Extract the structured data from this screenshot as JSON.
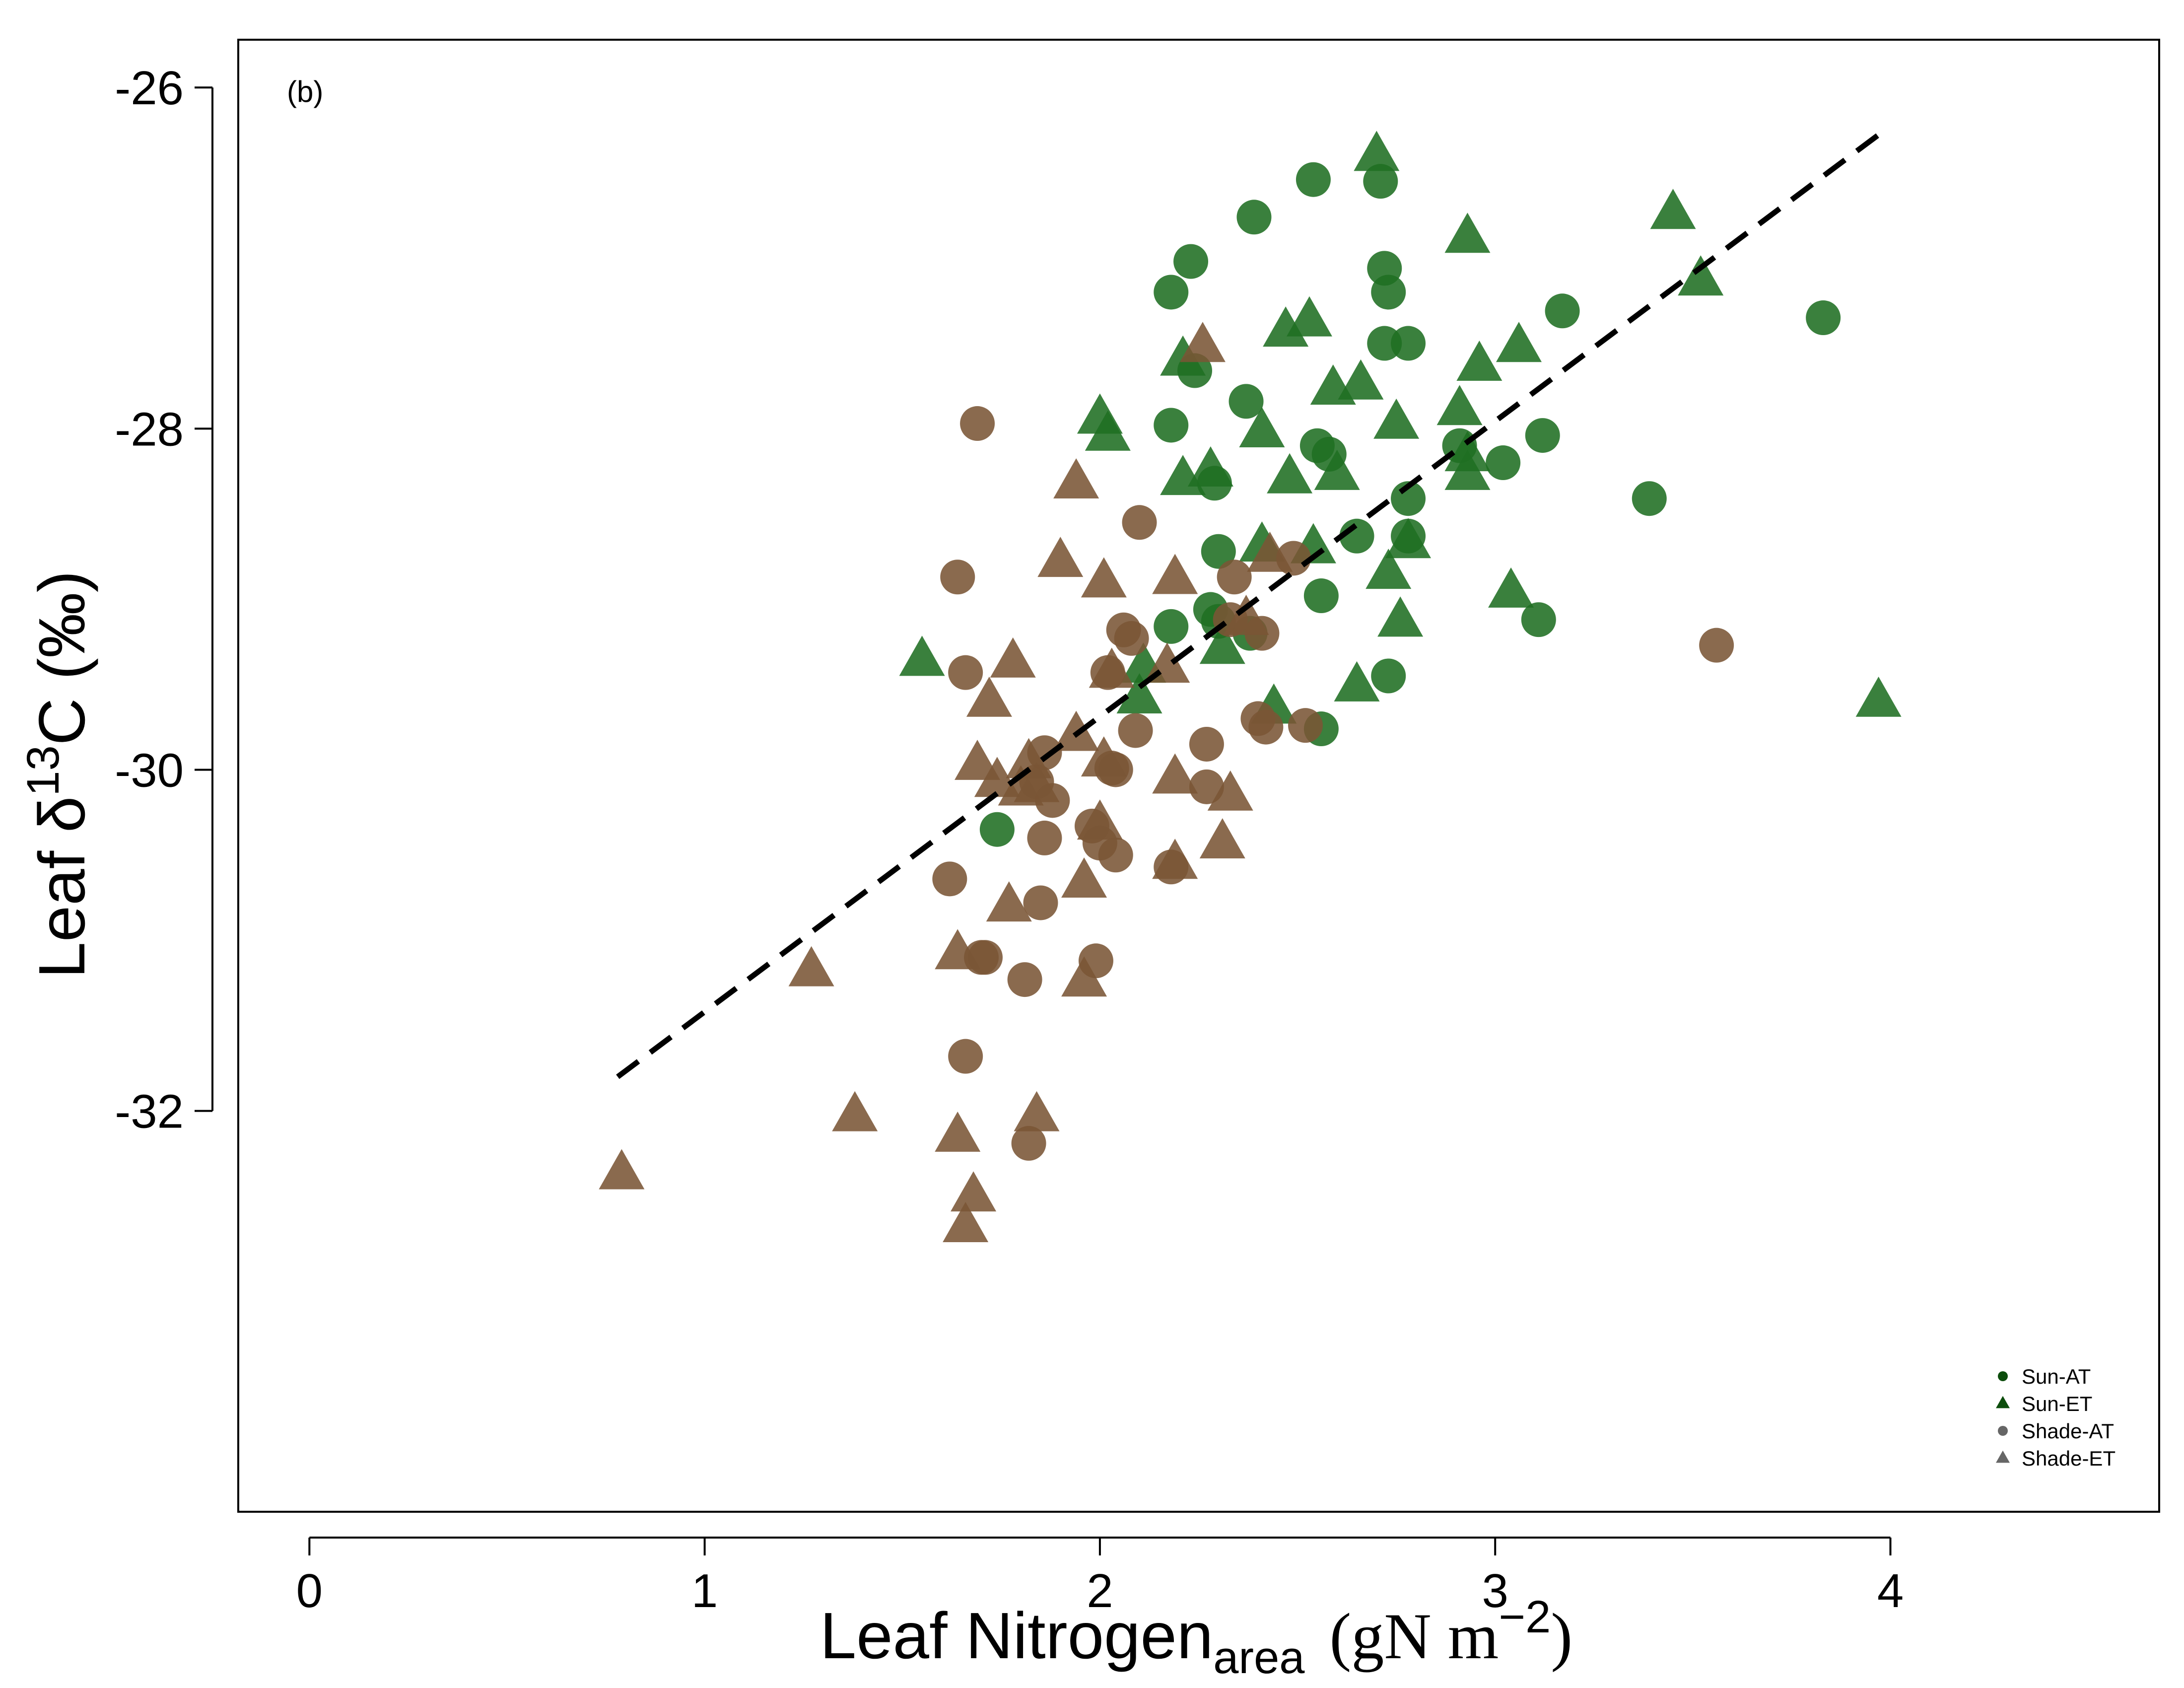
{
  "chart_data": {
    "type": "scatter",
    "panel_label": "(b)",
    "x_label": {
      "prefix": "Leaf Nitrogen",
      "subscript": "area",
      "unit_open": "(gN m",
      "unit_sup": "−2",
      "unit_close": ")"
    },
    "y_label": {
      "prefix": "Leaf δ",
      "superscript": "13",
      "suffix": "C  (‰)"
    },
    "xlim": [
      -0.18,
      4.68
    ],
    "ylim": [
      -34.35,
      -25.72
    ],
    "x_ticks": [
      0,
      1,
      2,
      3,
      4
    ],
    "x_tick_labels": [
      "0",
      "1",
      "2",
      "3",
      "4"
    ],
    "y_ticks": [
      -32,
      -30,
      -28,
      -26
    ],
    "y_tick_labels": [
      "-32",
      "-30",
      "-28",
      "-26"
    ],
    "grid": false,
    "legend_position": "bottom-right",
    "colors": {
      "sun": "#1f6e22",
      "shade": "#7a5535",
      "legend_sun": "#0c4d0c",
      "legend_shade": "#666666",
      "fit": "#000000"
    },
    "legend": [
      {
        "label": "Sun-AT",
        "marker": "circle",
        "group": "sun"
      },
      {
        "label": "Sun-ET",
        "marker": "triangle",
        "group": "sun"
      },
      {
        "label": "Shade-AT",
        "marker": "circle",
        "group": "shade"
      },
      {
        "label": "Shade-ET",
        "marker": "triangle",
        "group": "shade"
      }
    ],
    "fit_line": {
      "style": "dashed",
      "x": [
        0.78,
        3.98
      ],
      "y": [
        -31.8,
        -26.26
      ]
    },
    "series": [
      {
        "name": "Sun-AT",
        "marker": "circle",
        "group": "sun",
        "points": [
          [
            2.54,
            -26.54
          ],
          [
            2.71,
            -26.55
          ],
          [
            2.39,
            -26.76
          ],
          [
            2.23,
            -27.02
          ],
          [
            2.18,
            -27.2
          ],
          [
            2.72,
            -27.06
          ],
          [
            2.73,
            -27.2
          ],
          [
            3.17,
            -27.31
          ],
          [
            3.83,
            -27.35
          ],
          [
            2.24,
            -27.66
          ],
          [
            2.72,
            -27.5
          ],
          [
            2.78,
            -27.5
          ],
          [
            2.37,
            -27.84
          ],
          [
            2.18,
            -27.98
          ],
          [
            2.55,
            -28.1
          ],
          [
            2.58,
            -28.15
          ],
          [
            2.29,
            -28.32
          ],
          [
            3.12,
            -28.04
          ],
          [
            2.91,
            -28.1
          ],
          [
            3.02,
            -28.2
          ],
          [
            3.39,
            -28.41
          ],
          [
            2.78,
            -28.41
          ],
          [
            2.3,
            -28.72
          ],
          [
            2.65,
            -28.63
          ],
          [
            2.78,
            -28.63
          ],
          [
            2.56,
            -28.98
          ],
          [
            2.28,
            -29.06
          ],
          [
            2.3,
            -29.13
          ],
          [
            2.18,
            -29.16
          ],
          [
            3.11,
            -29.12
          ],
          [
            2.38,
            -29.2
          ],
          [
            2.73,
            -29.45
          ],
          [
            1.74,
            -30.35
          ],
          [
            2.56,
            -29.76
          ]
        ]
      },
      {
        "name": "Sun-ET",
        "marker": "triangle",
        "group": "sun",
        "points": [
          [
            2.7,
            -26.4
          ],
          [
            3.45,
            -26.74
          ],
          [
            2.93,
            -26.88
          ],
          [
            3.52,
            -27.13
          ],
          [
            2.53,
            -27.37
          ],
          [
            2.47,
            -27.43
          ],
          [
            3.06,
            -27.52
          ],
          [
            2.21,
            -27.6
          ],
          [
            2.96,
            -27.63
          ],
          [
            2.66,
            -27.74
          ],
          [
            2.59,
            -27.77
          ],
          [
            2.0,
            -27.94
          ],
          [
            2.91,
            -27.89
          ],
          [
            2.41,
            -28.02
          ],
          [
            2.75,
            -27.97
          ],
          [
            2.02,
            -28.04
          ],
          [
            2.28,
            -28.25
          ],
          [
            2.21,
            -28.3
          ],
          [
            2.48,
            -28.29
          ],
          [
            2.6,
            -28.27
          ],
          [
            2.93,
            -28.27
          ],
          [
            2.93,
            -28.16
          ],
          [
            2.41,
            -28.69
          ],
          [
            2.78,
            -28.67
          ],
          [
            2.54,
            -28.7
          ],
          [
            2.73,
            -28.85
          ],
          [
            3.04,
            -28.96
          ],
          [
            2.76,
            -29.13
          ],
          [
            2.31,
            -29.29
          ],
          [
            1.55,
            -29.36
          ],
          [
            2.11,
            -29.4
          ],
          [
            2.65,
            -29.51
          ],
          [
            2.1,
            -29.58
          ],
          [
            3.97,
            -29.6
          ],
          [
            2.44,
            -29.64
          ]
        ]
      },
      {
        "name": "Shade-AT",
        "marker": "circle",
        "group": "shade",
        "points": [
          [
            1.69,
            -27.97
          ],
          [
            2.1,
            -28.55
          ],
          [
            1.64,
            -28.87
          ],
          [
            2.34,
            -28.87
          ],
          [
            2.49,
            -28.76
          ],
          [
            2.06,
            -29.18
          ],
          [
            2.08,
            -29.23
          ],
          [
            2.41,
            -29.2
          ],
          [
            2.33,
            -29.12
          ],
          [
            3.56,
            -29.27
          ],
          [
            1.66,
            -29.43
          ],
          [
            2.02,
            -29.43
          ],
          [
            2.4,
            -29.7
          ],
          [
            2.42,
            -29.75
          ],
          [
            2.52,
            -29.74
          ],
          [
            2.09,
            -29.77
          ],
          [
            1.86,
            -29.9
          ],
          [
            2.27,
            -29.85
          ],
          [
            2.03,
            -29.99
          ],
          [
            2.04,
            -30.0
          ],
          [
            1.84,
            -30.07
          ],
          [
            2.27,
            -30.1
          ],
          [
            1.88,
            -30.18
          ],
          [
            1.98,
            -30.33
          ],
          [
            2.0,
            -30.43
          ],
          [
            1.86,
            -30.4
          ],
          [
            2.04,
            -30.5
          ],
          [
            2.18,
            -30.57
          ],
          [
            1.62,
            -30.64
          ],
          [
            1.85,
            -30.78
          ],
          [
            1.71,
            -31.1
          ],
          [
            1.7,
            -31.1
          ],
          [
            1.99,
            -31.12
          ],
          [
            1.81,
            -31.23
          ],
          [
            1.66,
            -31.68
          ],
          [
            1.82,
            -32.19
          ]
        ]
      },
      {
        "name": "Shade-ET",
        "marker": "triangle",
        "group": "shade",
        "points": [
          [
            2.26,
            -27.52
          ],
          [
            1.94,
            -28.32
          ],
          [
            1.9,
            -28.78
          ],
          [
            2.01,
            -28.9
          ],
          [
            2.19,
            -28.88
          ],
          [
            2.43,
            -28.75
          ],
          [
            2.37,
            -29.12
          ],
          [
            2.17,
            -29.4
          ],
          [
            1.78,
            -29.37
          ],
          [
            1.72,
            -29.6
          ],
          [
            2.03,
            -29.43
          ],
          [
            1.94,
            -29.8
          ],
          [
            1.69,
            -29.97
          ],
          [
            1.82,
            -29.96
          ],
          [
            1.74,
            -30.07
          ],
          [
            1.8,
            -30.12
          ],
          [
            2.01,
            -29.95
          ],
          [
            2.19,
            -30.05
          ],
          [
            2.33,
            -30.15
          ],
          [
            1.84,
            -30.1
          ],
          [
            2.0,
            -30.32
          ],
          [
            2.31,
            -30.43
          ],
          [
            2.19,
            -30.55
          ],
          [
            1.96,
            -30.66
          ],
          [
            1.77,
            -30.8
          ],
          [
            1.64,
            -31.08
          ],
          [
            1.27,
            -31.18
          ],
          [
            1.96,
            -31.24
          ],
          [
            1.38,
            -32.03
          ],
          [
            1.84,
            -32.03
          ],
          [
            1.64,
            -32.15
          ],
          [
            0.79,
            -32.37
          ],
          [
            1.68,
            -32.5
          ],
          [
            1.66,
            -32.68
          ]
        ]
      }
    ]
  }
}
